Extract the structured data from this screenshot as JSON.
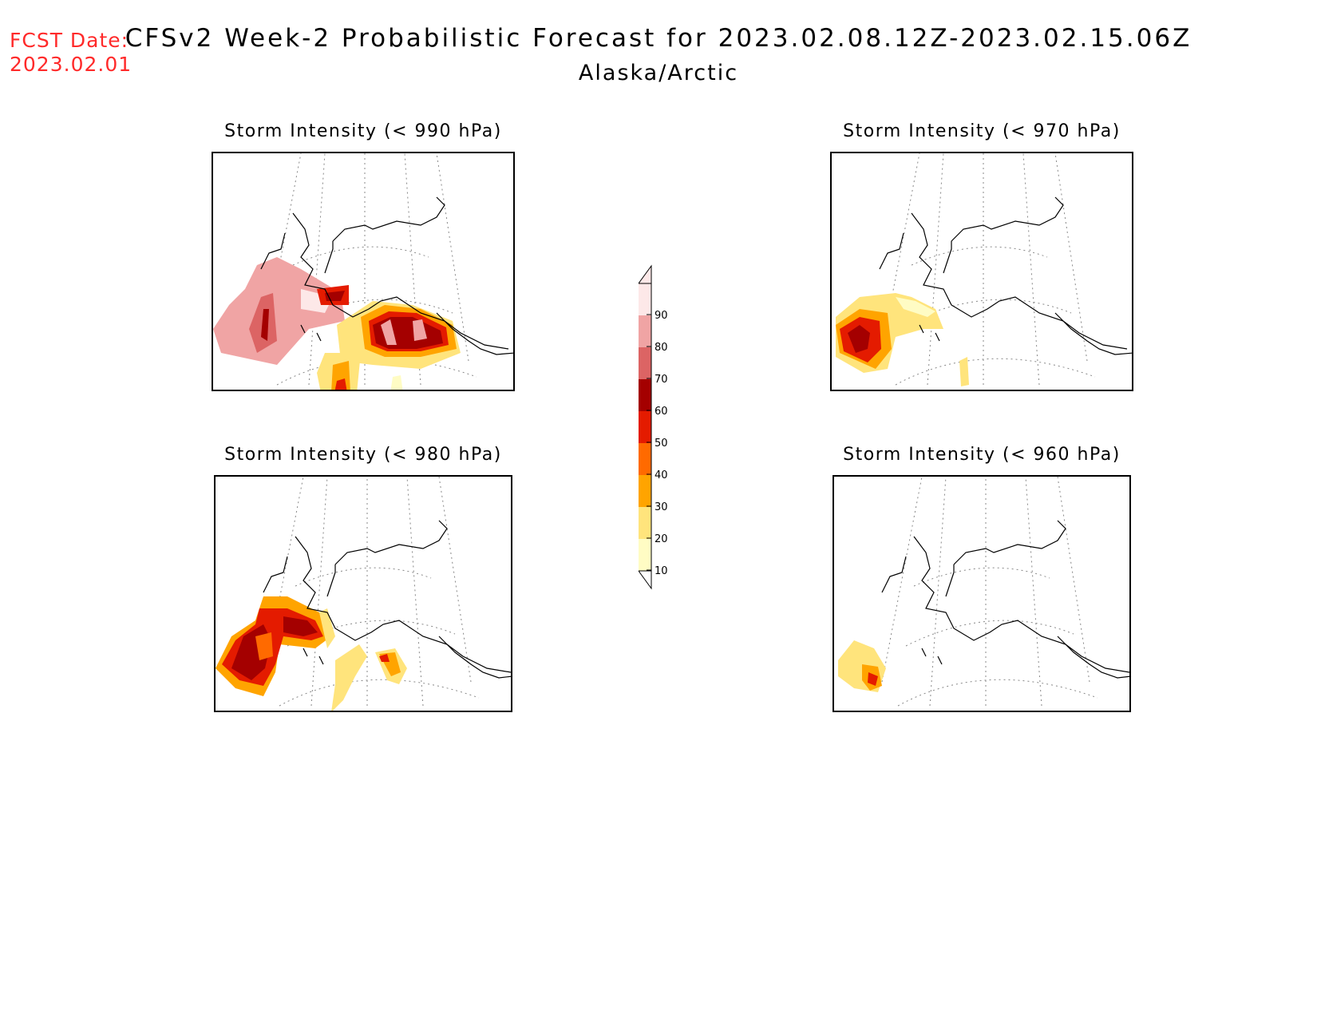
{
  "header": {
    "fcst_label": "FCST Date:",
    "fcst_date": "2023.02.01",
    "title": "CFSv2 Week-2 Probabilistic Forecast for 2023.02.08.12Z-2023.02.15.06Z",
    "subtitle": "Alaska/Arctic"
  },
  "panels": [
    {
      "id": "p990",
      "title": "Storm Intensity (< 990 hPa)"
    },
    {
      "id": "p970",
      "title": "Storm Intensity (< 970 hPa)"
    },
    {
      "id": "p980",
      "title": "Storm Intensity (< 980 hPa)"
    },
    {
      "id": "p960",
      "title": "Storm Intensity (< 960 hPa)"
    }
  ],
  "colorbar": {
    "levels": [
      "10",
      "20",
      "30",
      "40",
      "50",
      "60",
      "70",
      "80",
      "90"
    ],
    "colors": [
      "#fffcc4",
      "#ffe47c",
      "#ffa400",
      "#ff6a00",
      "#e41b00",
      "#a40000",
      "#dc6464",
      "#f0a4a4",
      "#fde8e8"
    ]
  }
}
